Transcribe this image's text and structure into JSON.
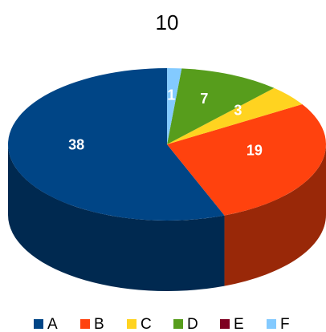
{
  "chart_data": {
    "type": "pie",
    "title": "10",
    "categories": [
      "A",
      "B",
      "C",
      "D",
      "E",
      "F"
    ],
    "values": [
      38,
      19,
      3,
      7,
      0,
      1
    ],
    "colors": [
      "#004586",
      "#ff420e",
      "#ffd320",
      "#579d1c",
      "#7e0021",
      "#83caff"
    ],
    "legend": "bottom"
  }
}
